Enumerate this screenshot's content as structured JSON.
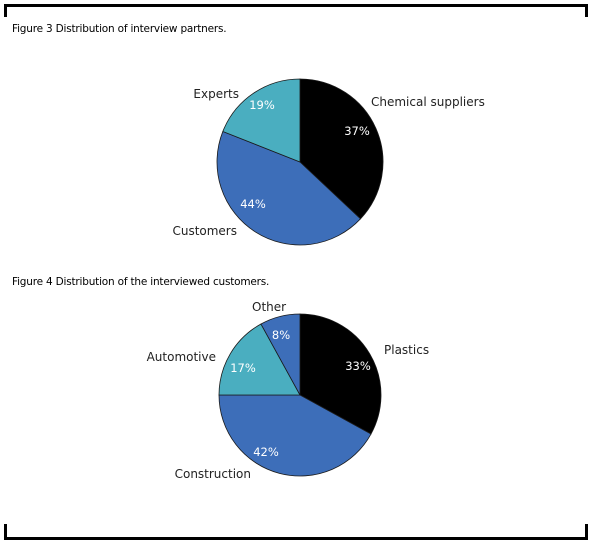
{
  "captions": {
    "figure3": "Figure 3 Distribution of interview partners.",
    "figure4": "Figure 4 Distribution of the interviewed customers."
  },
  "colors": {
    "black": "#000000",
    "blue": "#3d6eb9",
    "teal": "#4aaec0",
    "frame": "#000000"
  },
  "chart_data": [
    {
      "type": "pie",
      "title": "Figure 3 Distribution of interview partners.",
      "slices": [
        {
          "name": "Chemical suppliers",
          "value": 37,
          "label": "37%",
          "color": "#000000"
        },
        {
          "name": "Customers",
          "value": 44,
          "label": "44%",
          "color": "#3d6eb9"
        },
        {
          "name": "Experts",
          "value": 19,
          "label": "19%",
          "color": "#4aaec0"
        }
      ]
    },
    {
      "type": "pie",
      "title": "Figure 4 Distribution of the interviewed customers.",
      "slices": [
        {
          "name": "Plastics",
          "value": 33,
          "label": "33%",
          "color": "#000000"
        },
        {
          "name": "Construction",
          "value": 42,
          "label": "42%",
          "color": "#3d6eb9"
        },
        {
          "name": "Automotive",
          "value": 17,
          "label": "17%",
          "color": "#4aaec0"
        },
        {
          "name": "Other",
          "value": 8,
          "label": "8%",
          "color": "#3d6eb9"
        }
      ]
    }
  ]
}
